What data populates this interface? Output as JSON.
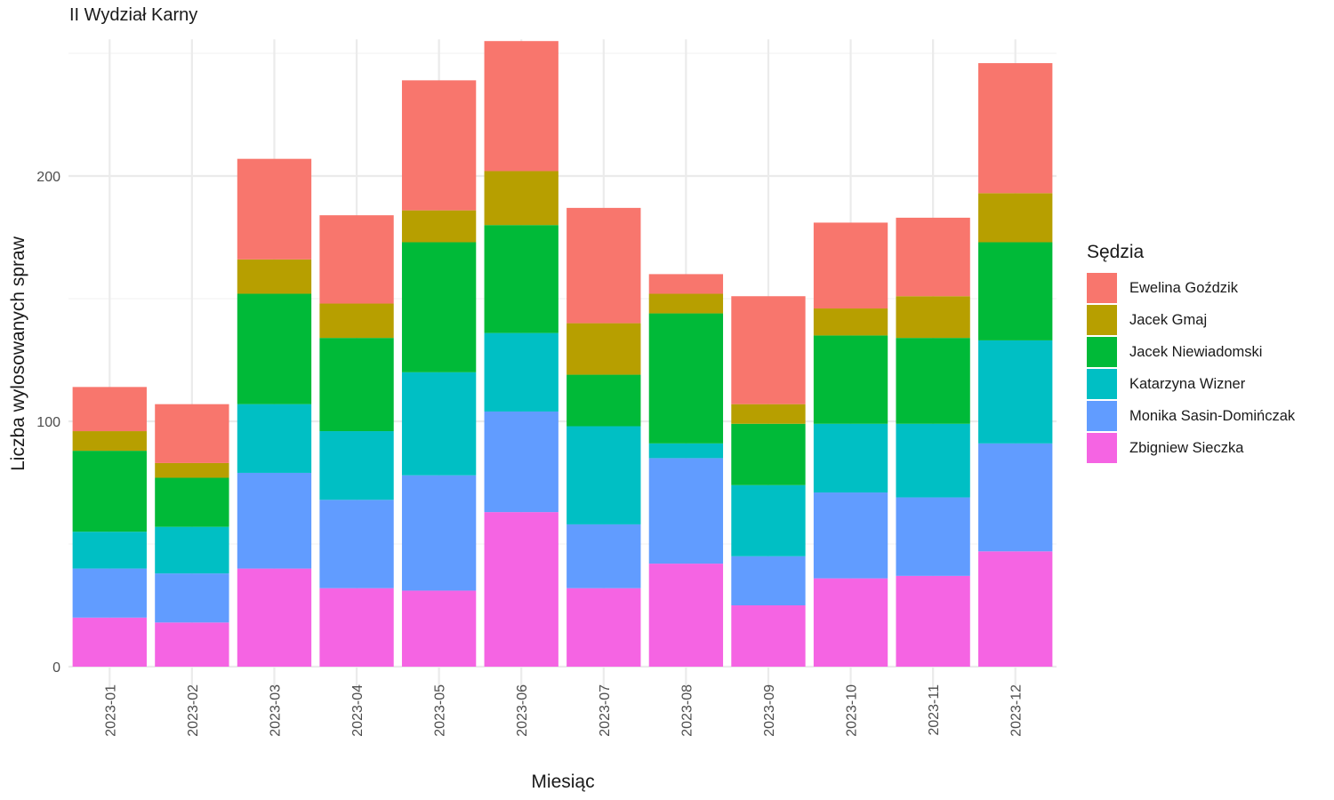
{
  "chart_data": {
    "type": "bar",
    "stacked": true,
    "title": "II Wydział Karny",
    "xlabel": "Miesiąc",
    "ylabel": "Liczba wylosowanych spraw",
    "ylim": [
      0,
      255
    ],
    "yticks": [
      0,
      100,
      200
    ],
    "grid": true,
    "legend_title": "Sędzia",
    "legend_position": "right",
    "categories": [
      "2023-01",
      "2023-02",
      "2023-03",
      "2023-04",
      "2023-05",
      "2023-06",
      "2023-07",
      "2023-08",
      "2023-09",
      "2023-10",
      "2023-11",
      "2023-12"
    ],
    "series": [
      {
        "name": "Zbigniew Sieczka",
        "color": "#F564E3",
        "values": [
          20,
          18,
          40,
          32,
          31,
          63,
          32,
          42,
          25,
          36,
          37,
          47
        ]
      },
      {
        "name": "Monika Sasin-Domińczak",
        "color": "#619CFF",
        "values": [
          20,
          20,
          39,
          36,
          47,
          41,
          26,
          43,
          20,
          35,
          32,
          44
        ]
      },
      {
        "name": "Katarzyna Wizner",
        "color": "#00BFC4",
        "values": [
          15,
          19,
          28,
          28,
          42,
          32,
          40,
          6,
          29,
          28,
          30,
          42
        ]
      },
      {
        "name": "Jacek Niewiadomski",
        "color": "#00BA38",
        "values": [
          33,
          20,
          45,
          38,
          53,
          44,
          21,
          53,
          25,
          36,
          35,
          40
        ]
      },
      {
        "name": "Jacek Gmaj",
        "color": "#B79F00",
        "values": [
          8,
          6,
          14,
          14,
          13,
          22,
          21,
          8,
          8,
          11,
          17,
          20
        ]
      },
      {
        "name": "Ewelina Goździk",
        "color": "#F8766D",
        "values": [
          18,
          24,
          41,
          36,
          53,
          53,
          47,
          8,
          44,
          35,
          32,
          53
        ]
      }
    ],
    "legend_order": [
      "Ewelina Goździk",
      "Jacek Gmaj",
      "Jacek Niewiadomski",
      "Katarzyna Wizner",
      "Monika Sasin-Domińczak",
      "Zbigniew Sieczka"
    ]
  }
}
